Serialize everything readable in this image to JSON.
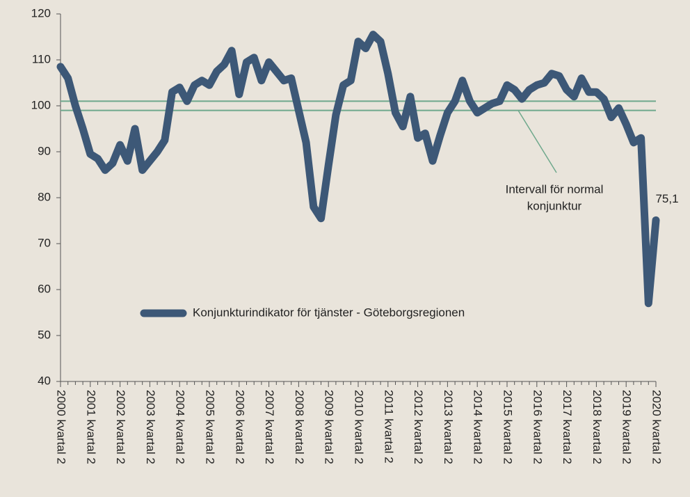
{
  "chart_data": {
    "type": "line",
    "categories": [
      "2000 kvartal 2",
      null,
      null,
      null,
      "2001 kvartal 2",
      null,
      null,
      null,
      "2002 kvartal 2",
      null,
      null,
      null,
      "2003 kvartal 2",
      null,
      null,
      null,
      "2004 kvartal 2",
      null,
      null,
      null,
      "2005 kvartal 2",
      null,
      null,
      null,
      "2006 kvartal 2",
      null,
      null,
      null,
      "2007 kvartal 2",
      null,
      null,
      null,
      "2008 kvartal 2",
      null,
      null,
      null,
      "2009 kvartal 2",
      null,
      null,
      null,
      "2010 kvartal 2",
      null,
      null,
      null,
      "2011 kvartal 2",
      null,
      null,
      null,
      "2012 kvartal 2",
      null,
      null,
      null,
      "2013 kvartal 2",
      null,
      null,
      null,
      "2014 kvartal 2",
      null,
      null,
      null,
      "2015 kvartal 2",
      null,
      null,
      null,
      "2016 kvartal 2",
      null,
      null,
      null,
      "2017 kvartal 2",
      null,
      null,
      null,
      "2018 kvartal 2",
      null,
      null,
      null,
      "2019 kvartal 2",
      null,
      null,
      null,
      "2020 kvartal 2"
    ],
    "series": [
      {
        "name": "Konjunkturindikator för tjänster - Göteborgsregionen",
        "color": "#3d5877",
        "values": [
          108.5,
          106,
          100,
          95,
          89.5,
          88.5,
          86,
          87.5,
          91.5,
          88,
          95,
          86,
          88,
          90,
          92.5,
          103,
          104,
          101,
          104.5,
          105.5,
          104.5,
          107.5,
          109,
          112,
          102.5,
          109.5,
          110.5,
          105.5,
          109.5,
          107.5,
          105.5,
          106,
          99,
          92,
          78,
          75.5,
          87,
          98,
          104.5,
          105.5,
          114,
          112.5,
          115.5,
          114,
          107,
          98.5,
          95.5,
          102,
          93,
          94,
          88,
          93.5,
          98.5,
          101,
          105.5,
          101,
          98.5,
          99.5,
          100.5,
          101,
          104.5,
          103.5,
          101.5,
          103.5,
          104.5,
          105,
          107,
          106.5,
          103.5,
          102,
          106,
          103,
          103,
          101.5,
          97.5,
          99.5,
          96,
          92,
          93,
          57,
          75.1
        ],
        "value_labels": [
          null,
          null,
          null,
          null,
          null,
          null,
          null,
          null,
          null,
          null,
          null,
          null,
          null,
          null,
          null,
          null,
          null,
          null,
          null,
          null,
          null,
          null,
          null,
          null,
          null,
          null,
          null,
          null,
          null,
          null,
          null,
          null,
          null,
          null,
          null,
          null,
          null,
          null,
          null,
          null,
          null,
          null,
          null,
          null,
          null,
          null,
          null,
          null,
          null,
          null,
          null,
          null,
          null,
          null,
          null,
          null,
          null,
          null,
          null,
          null,
          null,
          null,
          null,
          null,
          null,
          null,
          null,
          null,
          null,
          null,
          null,
          null,
          null,
          null,
          null,
          null,
          null,
          null,
          null,
          null,
          "75,1"
        ]
      }
    ],
    "reference_lines": {
      "values": [
        99,
        101
      ],
      "color": "#6fa88c",
      "label": [
        "Intervall för normal",
        "konjunktur"
      ]
    },
    "ylim": [
      40,
      120
    ],
    "yticks": [
      40,
      50,
      60,
      70,
      80,
      90,
      100,
      110,
      120
    ]
  }
}
